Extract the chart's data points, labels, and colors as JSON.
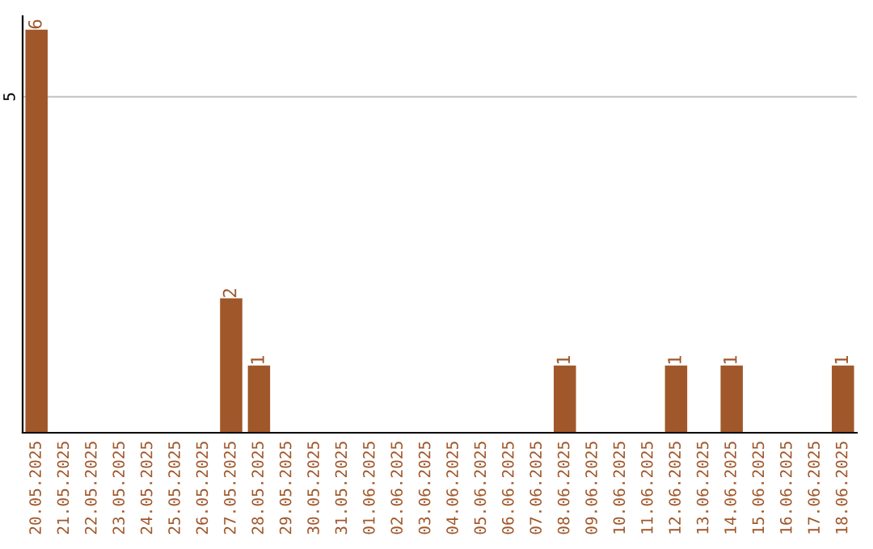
{
  "chart_data": {
    "type": "bar",
    "categories": [
      "20.05.2025",
      "21.05.2025",
      "22.05.2025",
      "23.05.2025",
      "24.05.2025",
      "25.05.2025",
      "26.05.2025",
      "27.05.2025",
      "28.05.2025",
      "29.05.2025",
      "30.05.2025",
      "31.05.2025",
      "01.06.2025",
      "02.06.2025",
      "03.06.2025",
      "04.06.2025",
      "05.06.2025",
      "06.06.2025",
      "07.06.2025",
      "08.06.2025",
      "09.06.2025",
      "10.06.2025",
      "11.06.2025",
      "12.06.2025",
      "13.06.2025",
      "14.06.2025",
      "15.06.2025",
      "16.06.2025",
      "17.06.2025",
      "18.06.2025"
    ],
    "values": [
      6,
      0,
      0,
      0,
      0,
      0,
      0,
      2,
      1,
      0,
      0,
      0,
      0,
      0,
      0,
      0,
      0,
      0,
      0,
      1,
      0,
      0,
      0,
      1,
      0,
      1,
      0,
      0,
      0,
      1
    ],
    "value_labels": [
      "6",
      null,
      null,
      null,
      null,
      null,
      null,
      "2",
      "1",
      null,
      null,
      null,
      null,
      null,
      null,
      null,
      null,
      null,
      null,
      "1",
      null,
      null,
      null,
      "1",
      null,
      "1",
      null,
      null,
      null,
      "1"
    ],
    "color": "#a0572a",
    "ylim": [
      0,
      6.2
    ],
    "yticks": [
      5
    ],
    "grid": "y"
  }
}
